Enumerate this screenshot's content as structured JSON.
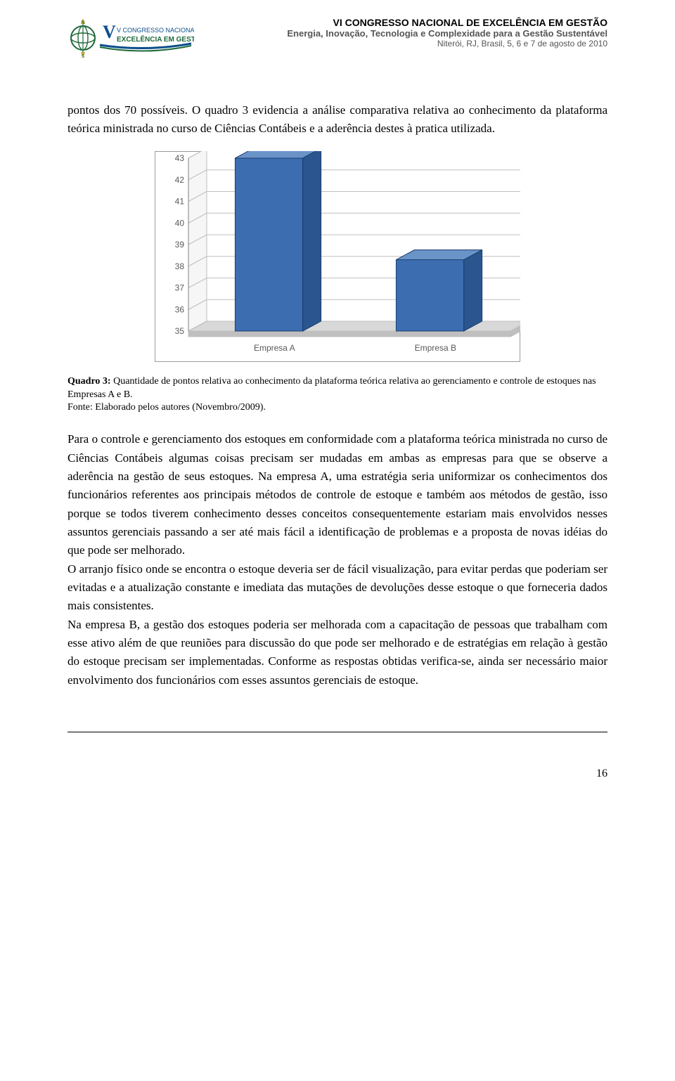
{
  "header": {
    "logo_top": "V CONGRESSO NACIONAL DE",
    "logo_bottom": "EXCELÊNCIA EM GESTÃO",
    "line1": "VI CONGRESSO NACIONAL DE EXCELÊNCIA EM GESTÃO",
    "line2": "Energia, Inovação, Tecnologia e Complexidade para a Gestão Sustentável",
    "line3": "Niterói, RJ, Brasil, 5, 6 e 7 de agosto de 2010"
  },
  "lead_paragraph": "pontos dos 70 possíveis. O quadro 3 evidencia a análise comparativa relativa ao conhecimento da plataforma teórica ministrada no curso de Ciências Contábeis e a aderência destes à pratica utilizada.",
  "chart": {
    "type": "bar-3d",
    "categories": [
      "Empresa A",
      "Empresa B"
    ],
    "values": [
      43,
      38.3
    ],
    "ylim": [
      35,
      43
    ],
    "yticks": [
      35,
      36,
      37,
      38,
      39,
      40,
      41,
      42,
      43
    ],
    "bar_color_front": "#3b6db0",
    "bar_color_top": "#6a93c8",
    "bar_color_side": "#2a558f",
    "floor_color": "#d8d8d8",
    "floor_side_color": "#bfbfbf",
    "back_wall_color": "#ffffff",
    "grid_color": "#bfbfbf",
    "axis_color": "#808080",
    "label_color": "#595959",
    "tick_fontsize": 12,
    "cat_fontsize": 12,
    "border_color": "#9a9a9a"
  },
  "caption_bold": "Quadro 3:",
  "caption_rest": " Quantidade de pontos relativa ao conhecimento da plataforma teórica relativa ao gerenciamento e controle de estoques nas Empresas A e B.",
  "caption_source": "Fonte: Elaborado pelos autores (Novembro/2009).",
  "p1": "Para o controle e gerenciamento dos estoques em conformidade com a plataforma teórica ministrada no curso de Ciências Contábeis algumas coisas precisam ser mudadas em ambas as empresas para que se observe a aderência na gestão de seus estoques. Na empresa A, uma estratégia seria uniformizar os conhecimentos dos funcionários referentes aos principais métodos de controle de estoque e também aos métodos de gestão, isso porque se todos tiverem conhecimento desses conceitos consequentemente estariam mais envolvidos nesses assuntos gerenciais passando a ser até mais fácil a identificação de problemas e a proposta de novas idéias do que pode ser melhorado.",
  "p2": "O arranjo físico onde se encontra o estoque deveria ser de fácil visualização, para evitar perdas que poderiam ser evitadas e a atualização constante e imediata das mutações de devoluções desse estoque o que forneceria dados mais consistentes.",
  "p3": "Na empresa B, a gestão dos estoques poderia ser melhorada com a capacitação de pessoas que trabalham com esse ativo além de que reuniões para discussão do que pode ser melhorado e de estratégias em relação à gestão do estoque precisam ser implementadas. Conforme as respostas obtidas verifica-se, ainda ser necessário maior envolvimento dos funcionários com esses assuntos gerenciais de estoque.",
  "page_number": "16"
}
